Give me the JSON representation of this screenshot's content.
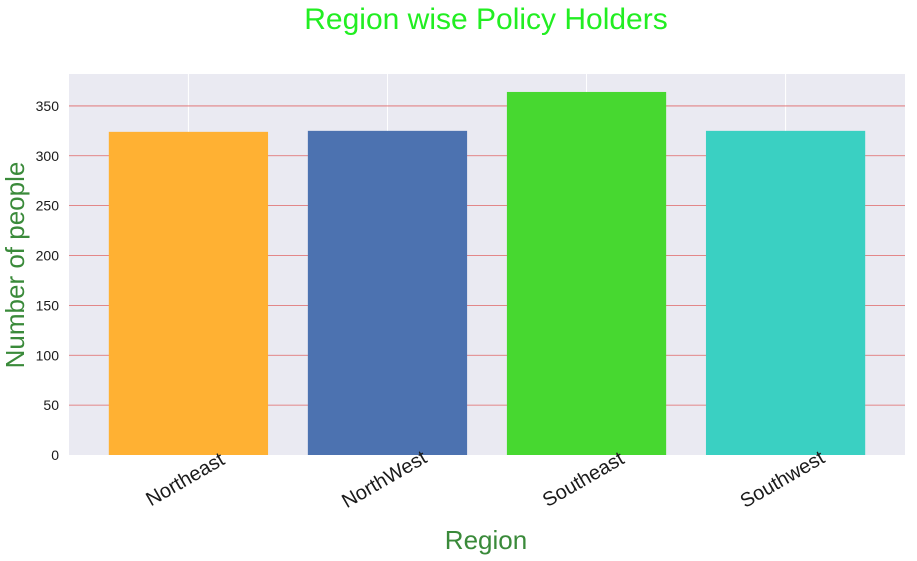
{
  "chart_data": {
    "type": "bar",
    "title": "Region wise Policy Holders",
    "xlabel": "Region",
    "ylabel": "Number of people",
    "categories": [
      "Northeast",
      "NorthWest",
      "Southeast",
      "Southwest"
    ],
    "values": [
      324,
      325,
      364,
      325
    ],
    "ylim": [
      0,
      382
    ],
    "yticks": [
      0,
      50,
      100,
      150,
      200,
      250,
      300,
      350
    ],
    "grid": true,
    "legend": "none",
    "colors": {
      "bars": [
        "#FFB133",
        "#4C72B0",
        "#47D830",
        "#3AD0C2"
      ],
      "title": "#22EE22",
      "axis_labels": "#3A8A3A",
      "background": "#EAEAF2",
      "horizontal_grid": "#E06666",
      "vertical_grid": "#FFFFFF"
    }
  }
}
